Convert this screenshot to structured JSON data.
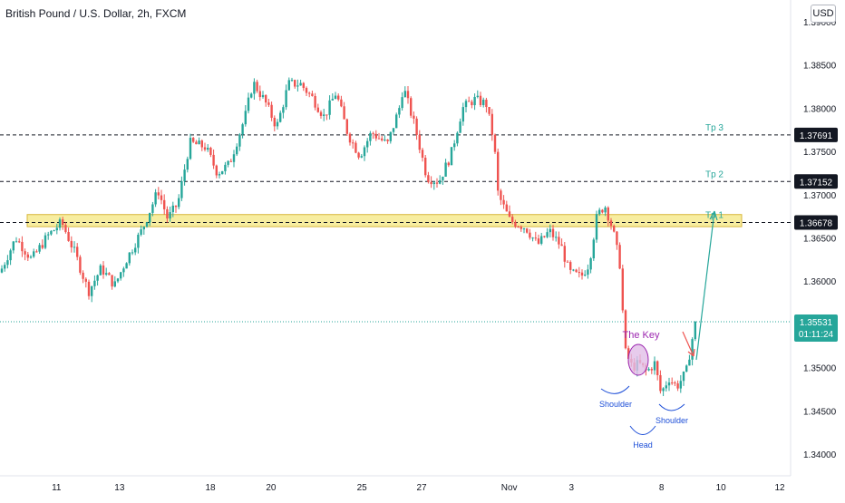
{
  "title": "British Pound / U.S. Dollar, 2h, FXCM",
  "currency_badge": "USD",
  "chart_data": {
    "type": "candlestick",
    "ylim": [
      1.3375,
      1.3925
    ],
    "yticks": [
      "1.39000",
      "1.38500",
      "1.38000",
      "1.37500",
      "1.37000",
      "1.36500",
      "1.36000",
      "1.35500",
      "1.35000",
      "1.34500",
      "1.34000"
    ],
    "xticks": [
      {
        "label": "11",
        "pos": 0.0714
      },
      {
        "label": "13",
        "pos": 0.1512
      },
      {
        "label": "18",
        "pos": 0.2661
      },
      {
        "label": "20",
        "pos": 0.3428
      },
      {
        "label": "25",
        "pos": 0.4578
      },
      {
        "label": "27",
        "pos": 0.5333
      },
      {
        "label": "Nov",
        "pos": 0.6441
      },
      {
        "label": "3",
        "pos": 0.7228
      },
      {
        "label": "8",
        "pos": 0.8367
      },
      {
        "label": "10",
        "pos": 0.9119
      },
      {
        "label": "12",
        "pos": 0.9863
      }
    ],
    "anchors": [
      [
        0.0,
        1.361
      ],
      [
        0.02,
        1.365
      ],
      [
        0.04,
        1.3625
      ],
      [
        0.06,
        1.3652
      ],
      [
        0.078,
        1.3668
      ],
      [
        0.095,
        1.3632
      ],
      [
        0.112,
        1.3588
      ],
      [
        0.128,
        1.3615
      ],
      [
        0.145,
        1.3595
      ],
      [
        0.16,
        1.3625
      ],
      [
        0.18,
        1.366
      ],
      [
        0.2,
        1.3705
      ],
      [
        0.212,
        1.3672
      ],
      [
        0.225,
        1.369
      ],
      [
        0.24,
        1.376
      ],
      [
        0.26,
        1.3755
      ],
      [
        0.275,
        1.3725
      ],
      [
        0.29,
        1.3735
      ],
      [
        0.31,
        1.379
      ],
      [
        0.32,
        1.383
      ],
      [
        0.335,
        1.3808
      ],
      [
        0.35,
        1.3778
      ],
      [
        0.365,
        1.3828
      ],
      [
        0.38,
        1.3828
      ],
      [
        0.395,
        1.3812
      ],
      [
        0.41,
        1.379
      ],
      [
        0.425,
        1.3818
      ],
      [
        0.44,
        1.377
      ],
      [
        0.455,
        1.3745
      ],
      [
        0.47,
        1.3772
      ],
      [
        0.49,
        1.3758
      ],
      [
        0.505,
        1.38
      ],
      [
        0.51,
        1.3825
      ],
      [
        0.525,
        1.3778
      ],
      [
        0.54,
        1.372
      ],
      [
        0.555,
        1.3715
      ],
      [
        0.57,
        1.3745
      ],
      [
        0.585,
        1.38
      ],
      [
        0.6,
        1.381
      ],
      [
        0.615,
        1.3805
      ],
      [
        0.625,
        1.376
      ],
      [
        0.63,
        1.37
      ],
      [
        0.645,
        1.367
      ],
      [
        0.665,
        1.3662
      ],
      [
        0.68,
        1.3642
      ],
      [
        0.695,
        1.3658
      ],
      [
        0.71,
        1.364
      ],
      [
        0.72,
        1.361
      ],
      [
        0.735,
        1.3605
      ],
      [
        0.745,
        1.362
      ],
      [
        0.755,
        1.3675
      ],
      [
        0.765,
        1.3688
      ],
      [
        0.775,
        1.366
      ],
      [
        0.785,
        1.3615
      ],
      [
        0.79,
        1.352
      ],
      [
        0.8,
        1.35
      ],
      [
        0.808,
        1.3505
      ],
      [
        0.818,
        1.3495
      ],
      [
        0.828,
        1.3505
      ],
      [
        0.836,
        1.347
      ],
      [
        0.846,
        1.3488
      ],
      [
        0.856,
        1.3478
      ],
      [
        0.868,
        1.3495
      ],
      [
        0.876,
        1.3535
      ],
      [
        0.88,
        1.3553
      ]
    ],
    "levels": [
      {
        "label": "Tp 3",
        "price": "1.37691"
      },
      {
        "label": "Tp 2",
        "price": "1.37152"
      },
      {
        "label": "Tp 1",
        "price": "1.36678"
      }
    ],
    "support_zone": [
      1.3663,
      1.3677
    ],
    "last_price": "1.35531",
    "countdown": "01:11:24",
    "annotations": {
      "key": "The Key",
      "left_shoulder": "Shoulder",
      "head": "Head",
      "right_shoulder": "Shoulder"
    },
    "colors": {
      "up": "#26a69a",
      "down": "#ef5350",
      "zone": "#f7eda0",
      "zone_border": "#d8b73a",
      "target_text": "#26a69a",
      "pattern": "#1e4fd8",
      "key": "#9c27b0",
      "projection": "#26a69a",
      "last_price": "#26a69a"
    }
  }
}
